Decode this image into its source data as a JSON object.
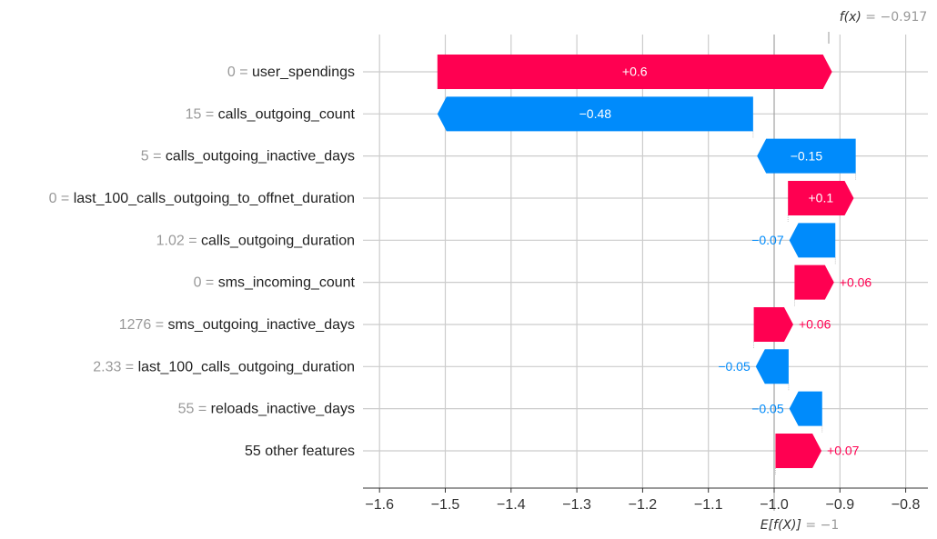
{
  "chart_data": {
    "type": "waterfall",
    "x_ticks": [
      -1.6,
      -1.5,
      -1.4,
      -1.3,
      -1.2,
      -1.1,
      -1.0,
      -0.9,
      -0.8
    ],
    "xlim": [
      -1.6,
      -0.8
    ],
    "grid": true,
    "fx": {
      "prefix": "f(x)",
      "value_text": " = −0.917",
      "value": -0.917
    },
    "base": {
      "prefix": "E[f(X)]",
      "value_text": " = −1",
      "value": -1.0
    },
    "rows": [
      {
        "value_label": "0",
        "feature": "user_spendings",
        "shap": 0.6,
        "label": "+0.6",
        "start": -1.512
      },
      {
        "value_label": "15",
        "feature": "calls_outgoing_count",
        "shap": -0.48,
        "label": "−0.48",
        "start": -1.032
      },
      {
        "value_label": "5",
        "feature": "calls_outgoing_inactive_days",
        "shap": -0.15,
        "label": "−0.15",
        "start": -0.876
      },
      {
        "value_label": "0",
        "feature": "last_100_calls_outgoing_to_offnet_duration",
        "shap": 0.1,
        "label": "+0.1",
        "start": -0.979
      },
      {
        "value_label": "1.02",
        "feature": "calls_outgoing_duration",
        "shap": -0.07,
        "label": "−0.07",
        "start": -0.907
      },
      {
        "value_label": "0",
        "feature": "sms_incoming_count",
        "shap": 0.06,
        "label": "+0.06",
        "start": -0.969
      },
      {
        "value_label": "1276",
        "feature": "sms_outgoing_inactive_days",
        "shap": 0.06,
        "label": "+0.06",
        "start": -1.031
      },
      {
        "value_label": "2.33",
        "feature": "last_100_calls_outgoing_duration",
        "shap": -0.05,
        "label": "−0.05",
        "start": -0.978
      },
      {
        "value_label": "55",
        "feature": "reloads_inactive_days",
        "shap": -0.05,
        "label": "−0.05",
        "start": -0.927
      },
      {
        "value_label": "",
        "feature": "55 other features",
        "shap": 0.07,
        "label": "+0.07",
        "start": -0.998
      }
    ],
    "colors": {
      "positive": "#ff0051",
      "negative": "#008bfb",
      "grid": "#cccccc",
      "axis": "#333333",
      "annot": "#999999"
    }
  }
}
